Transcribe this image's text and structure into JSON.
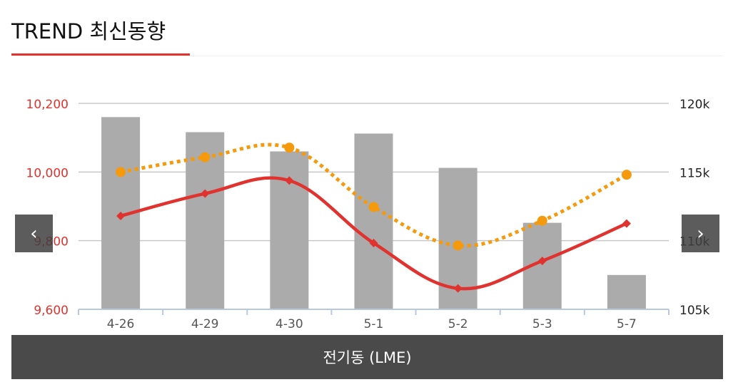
{
  "header": {
    "title": "TREND 최신동향"
  },
  "nav": {
    "prev_icon": "chevron-left-icon",
    "next_icon": "chevron-right-icon",
    "prev_glyph": "‹",
    "next_glyph": "›"
  },
  "footer": {
    "label": "전기동 (LME)"
  },
  "colors": {
    "accent": "#e0332f",
    "price_line": "#e0332f",
    "dotted_line": "#f59a0c",
    "bars": "#ababab",
    "grid": "#c8c8c8",
    "axis": "#b8c8e0"
  },
  "chart_data": {
    "type": "bar+line",
    "categories": [
      "4-26",
      "4-29",
      "4-30",
      "5-1",
      "5-2",
      "5-3",
      "5-7"
    ],
    "left_axis": {
      "ylim": [
        9600,
        10200
      ],
      "ticks": [
        "9,600",
        "9,800",
        "10,000",
        "10,200"
      ],
      "color": "#e0332f"
    },
    "right_axis": {
      "ylim": [
        105000,
        120000
      ],
      "ticks": [
        "105k",
        "110k",
        "115k",
        "120k"
      ]
    },
    "bars": {
      "axis": "right",
      "values": [
        119000,
        117900,
        116500,
        117800,
        115300,
        111300,
        107500
      ],
      "color": "#ababab"
    },
    "series": [
      {
        "axis": "left",
        "style": "solid",
        "marker": "diamond",
        "color": "#e0332f",
        "values": [
          9872,
          9937,
          9975,
          9793,
          9661,
          9741,
          9850
        ]
      },
      {
        "axis": "left",
        "style": "dotted",
        "marker": "circle",
        "color": "#f59a0c",
        "values": [
          10000,
          10043,
          10071,
          9898,
          9786,
          9858,
          9992
        ]
      }
    ],
    "grid": true
  }
}
